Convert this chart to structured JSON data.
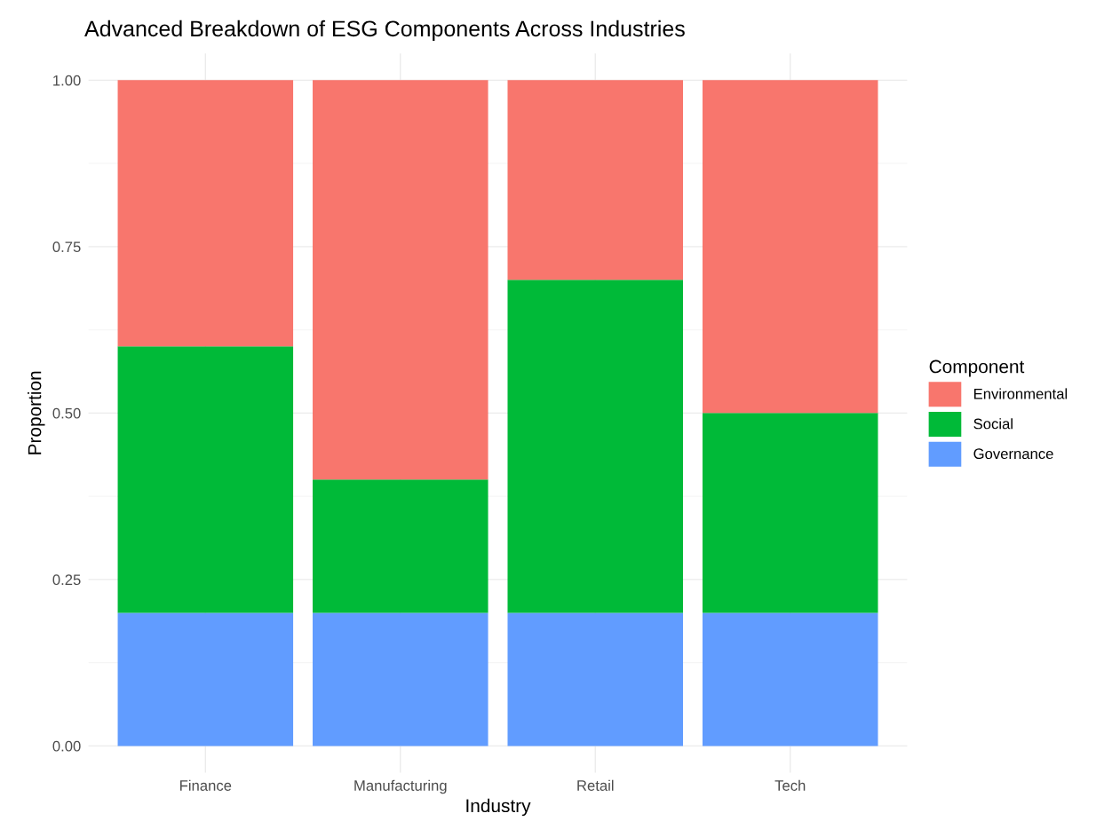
{
  "chart_data": {
    "type": "bar",
    "title": "Advanced Breakdown of ESG Components Across Industries",
    "xlabel": "Industry",
    "ylabel": "Proportion",
    "legend_title": "Component",
    "categories": [
      "Finance",
      "Manufacturing",
      "Retail",
      "Tech"
    ],
    "stacked": true,
    "series": [
      {
        "name": "Governance",
        "color": "#619cff",
        "values": [
          0.2,
          0.2,
          0.2,
          0.2
        ]
      },
      {
        "name": "Social",
        "color": "#00ba38",
        "values": [
          0.4,
          0.2,
          0.5,
          0.3
        ]
      },
      {
        "name": "Environmental",
        "color": "#f8766d",
        "values": [
          0.4,
          0.6,
          0.3,
          0.5
        ]
      }
    ],
    "ylim": [
      -0.04,
      1.04
    ],
    "yticks": [
      {
        "value": 0,
        "label": "0.00"
      },
      {
        "value": 0.25,
        "label": "0.25"
      },
      {
        "value": 0.5,
        "label": "0.50"
      },
      {
        "value": 0.75,
        "label": "0.75"
      },
      {
        "value": 1,
        "label": "1.00"
      }
    ],
    "grid": true,
    "legend": "right"
  }
}
